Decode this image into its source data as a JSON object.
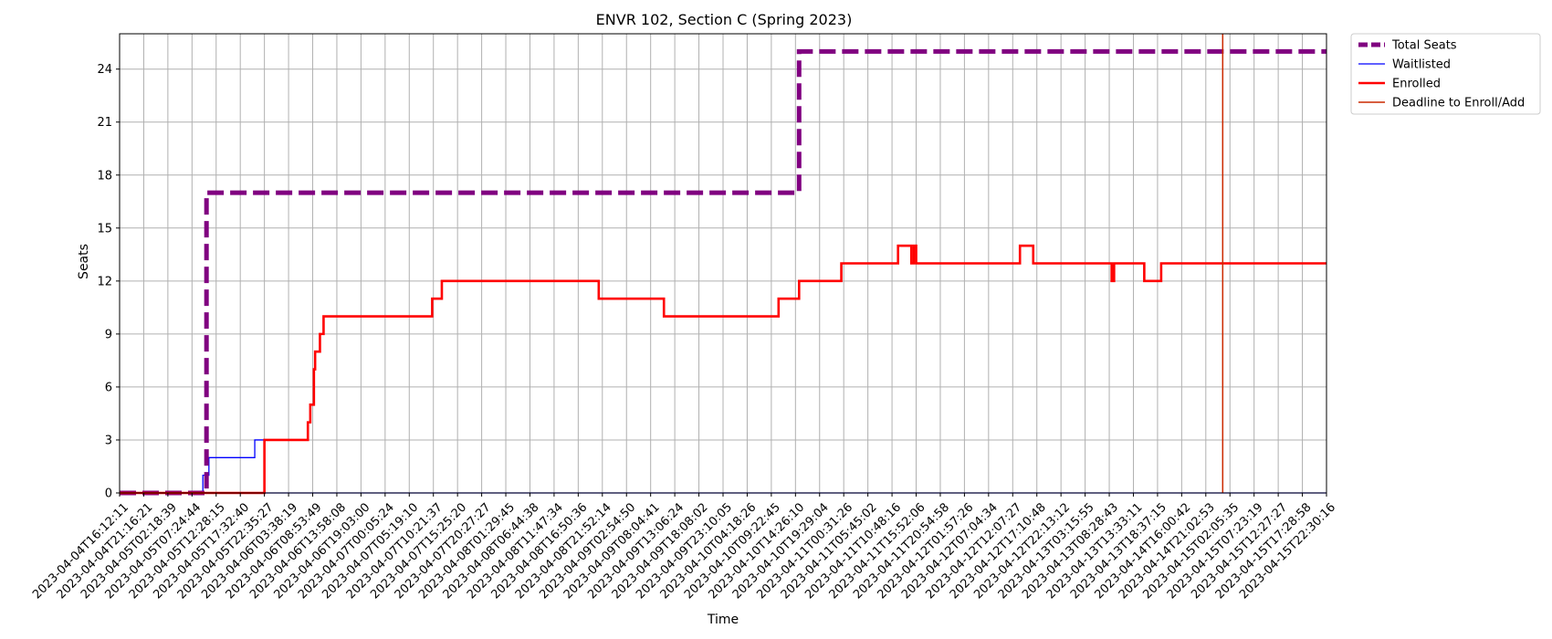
{
  "chart_data": {
    "type": "line",
    "title": "ENVR 102, Section C (Spring 2023)",
    "xlabel": "Time",
    "ylabel": "Seats",
    "ylim": [
      0,
      26
    ],
    "yticks": [
      0,
      3,
      6,
      9,
      12,
      15,
      18,
      21,
      24
    ],
    "grid": true,
    "legend_position": "outside-top-right",
    "x_tick_labels": [
      "2023-04-04T16:12:11",
      "2023-04-04T21:16:21",
      "2023-04-05T02:18:39",
      "2023-04-05T07:24:44",
      "2023-04-05T12:28:15",
      "2023-04-05T17:32:40",
      "2023-04-05T22:35:27",
      "2023-04-06T03:38:19",
      "2023-04-06T08:53:49",
      "2023-04-06T13:58:08",
      "2023-04-06T19:03:00",
      "2023-04-07T00:05:24",
      "2023-04-07T05:19:10",
      "2023-04-07T10:21:37",
      "2023-04-07T15:25:20",
      "2023-04-07T20:27:27",
      "2023-04-08T01:29:45",
      "2023-04-08T06:44:38",
      "2023-04-08T11:47:34",
      "2023-04-08T16:50:36",
      "2023-04-08T21:52:14",
      "2023-04-09T02:54:50",
      "2023-04-09T08:04:41",
      "2023-04-09T13:06:24",
      "2023-04-09T18:08:02",
      "2023-04-09T23:10:05",
      "2023-04-10T04:18:26",
      "2023-04-10T09:22:45",
      "2023-04-10T14:26:10",
      "2023-04-10T19:29:04",
      "2023-04-11T00:31:26",
      "2023-04-11T05:45:02",
      "2023-04-11T10:48:16",
      "2023-04-11T15:52:06",
      "2023-04-11T20:54:58",
      "2023-04-12T01:57:26",
      "2023-04-12T07:04:34",
      "2023-04-12T12:07:27",
      "2023-04-12T17:10:48",
      "2023-04-12T22:13:12",
      "2023-04-13T03:15:55",
      "2023-04-13T08:28:43",
      "2023-04-13T13:33:11",
      "2023-04-13T18:37:15",
      "2023-04-14T16:00:42",
      "2023-04-14T21:02:53",
      "2023-04-15T02:05:35",
      "2023-04-15T07:23:19",
      "2023-04-15T12:27:27",
      "2023-04-15T17:28:58",
      "2023-04-15T22:30:16"
    ],
    "series": [
      {
        "name": "Total Seats",
        "color": "#800080",
        "style": "dashed-thick",
        "points": [
          [
            0,
            0
          ],
          [
            3.6,
            0
          ],
          [
            3.6,
            17
          ],
          [
            28.15,
            17
          ],
          [
            28.15,
            25
          ],
          [
            50,
            25
          ]
        ]
      },
      {
        "name": "Waitlisted",
        "color": "#0000ff",
        "style": "solid-thin",
        "points": [
          [
            0,
            0
          ],
          [
            3.45,
            0
          ],
          [
            3.45,
            1
          ],
          [
            3.7,
            1
          ],
          [
            3.7,
            2
          ],
          [
            5.6,
            2
          ],
          [
            5.6,
            3
          ],
          [
            6.0,
            3
          ],
          [
            6.0,
            0
          ],
          [
            50,
            0
          ]
        ]
      },
      {
        "name": "Enrolled",
        "color": "#ff0000",
        "style": "solid",
        "points": [
          [
            0,
            0
          ],
          [
            6.0,
            0
          ],
          [
            6.0,
            3
          ],
          [
            7.8,
            3
          ],
          [
            7.8,
            4
          ],
          [
            7.9,
            4
          ],
          [
            7.9,
            5
          ],
          [
            8.05,
            5
          ],
          [
            8.05,
            7
          ],
          [
            8.1,
            7
          ],
          [
            8.1,
            8
          ],
          [
            8.3,
            8
          ],
          [
            8.3,
            9
          ],
          [
            8.45,
            9
          ],
          [
            8.45,
            10
          ],
          [
            12.95,
            10
          ],
          [
            12.95,
            11
          ],
          [
            13.35,
            11
          ],
          [
            13.35,
            12
          ],
          [
            19.85,
            12
          ],
          [
            19.85,
            11
          ],
          [
            22.55,
            11
          ],
          [
            22.55,
            10
          ],
          [
            27.3,
            10
          ],
          [
            27.3,
            11
          ],
          [
            28.15,
            11
          ],
          [
            28.15,
            12
          ],
          [
            29.9,
            12
          ],
          [
            29.9,
            13
          ],
          [
            32.25,
            13
          ],
          [
            32.25,
            14
          ],
          [
            32.8,
            14
          ],
          [
            32.8,
            13
          ],
          [
            32.9,
            13
          ],
          [
            32.9,
            14
          ],
          [
            33.0,
            14
          ],
          [
            33.0,
            13
          ],
          [
            37.3,
            13
          ],
          [
            37.3,
            14
          ],
          [
            37.85,
            14
          ],
          [
            37.85,
            13
          ],
          [
            41.1,
            13
          ],
          [
            41.1,
            12
          ],
          [
            41.2,
            12
          ],
          [
            41.2,
            13
          ],
          [
            42.45,
            13
          ],
          [
            42.45,
            12
          ],
          [
            43.15,
            12
          ],
          [
            43.15,
            13
          ],
          [
            50,
            13
          ]
        ]
      },
      {
        "name": "Deadline to Enroll/Add",
        "color": "#cc2a00",
        "style": "vline",
        "x": 45.7
      }
    ]
  }
}
